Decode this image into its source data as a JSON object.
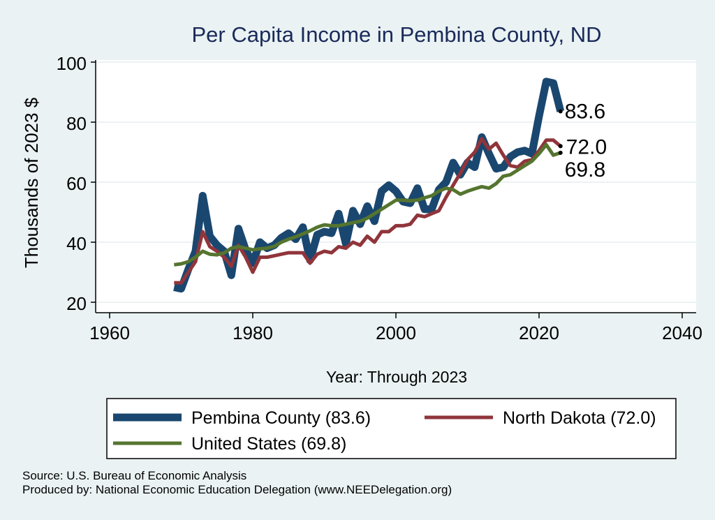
{
  "chart_data": {
    "type": "line",
    "title": "Per Capita Income in Pembina County, ND",
    "xlabel": "Year: Through 2023",
    "ylabel": "Thousands of 2023 $",
    "xlim": [
      1960,
      2040
    ],
    "ylim": [
      20,
      100
    ],
    "xticks": [
      "1960",
      "1980",
      "2000",
      "2020",
      "2040"
    ],
    "yticks": [
      "20",
      "40",
      "60",
      "80",
      "100"
    ],
    "grid": true,
    "legend_position": "bottom",
    "x": [
      1969,
      1970,
      1971,
      1972,
      1973,
      1974,
      1975,
      1976,
      1977,
      1978,
      1979,
      1980,
      1981,
      1982,
      1983,
      1984,
      1985,
      1986,
      1987,
      1988,
      1989,
      1990,
      1991,
      1992,
      1993,
      1994,
      1995,
      1996,
      1997,
      1998,
      1999,
      2000,
      2001,
      2002,
      2003,
      2004,
      2005,
      2006,
      2007,
      2008,
      2009,
      2010,
      2011,
      2012,
      2013,
      2014,
      2015,
      2016,
      2017,
      2018,
      2019,
      2020,
      2021,
      2022,
      2023
    ],
    "series": [
      {
        "name": "Pembina County (83.6)",
        "color": "#1a476f",
        "end_label": "83.6",
        "values": [
          25,
          24.5,
          31,
          37,
          55.5,
          42,
          39,
          37,
          29,
          44.5,
          37.5,
          33,
          40,
          38,
          39,
          41.5,
          43,
          41,
          45,
          34,
          42.5,
          43.5,
          43,
          49.5,
          39.5,
          50.5,
          46,
          52,
          47,
          57,
          59,
          57,
          53.5,
          53,
          58,
          51,
          51,
          57.5,
          60,
          66.5,
          62.5,
          66.5,
          65,
          75,
          69.5,
          64.5,
          65,
          68.5,
          70,
          70.5,
          69.5,
          82,
          93.5,
          93,
          83.6
        ]
      },
      {
        "name": "North Dakota (72.0)",
        "color": "#90353b",
        "end_label": "72.0",
        "values": [
          26.5,
          26.5,
          30,
          33.5,
          43.5,
          38.5,
          37,
          35,
          32,
          39,
          35,
          30,
          35,
          35,
          35.5,
          36,
          36.5,
          36.5,
          36.5,
          33,
          36,
          37,
          36.5,
          38.5,
          38,
          40,
          39,
          42,
          40,
          43.5,
          43.5,
          45.5,
          45.5,
          46,
          49,
          48.5,
          49.5,
          50.5,
          55,
          59,
          63,
          67.5,
          70,
          74.5,
          71,
          73,
          69,
          65.5,
          65,
          67,
          67.5,
          70.5,
          74,
          74,
          72.0
        ]
      },
      {
        "name": "United States (69.8)",
        "color": "#55752f",
        "end_label": "69.8",
        "values": [
          32.5,
          32.8,
          33.5,
          35,
          37,
          36,
          35.8,
          36.5,
          38,
          38.5,
          38,
          37.5,
          37.8,
          38,
          38.6,
          40,
          41,
          41.8,
          42.8,
          43.8,
          45,
          45.8,
          45.5,
          45.5,
          46,
          46.5,
          47,
          48,
          49.5,
          51,
          52.5,
          54,
          54,
          53.8,
          54,
          54.8,
          55.5,
          57,
          58,
          57.5,
          56,
          57,
          57.8,
          58.5,
          58,
          59.5,
          62,
          62.5,
          64,
          65.5,
          67,
          69.5,
          72.5,
          69,
          69.8
        ]
      }
    ]
  },
  "source_line": "Source: U.S. Bureau of Economic Analysis",
  "produced_line": "Produced by: National Economic Education Delegation (www.NEEDelegation.org)"
}
